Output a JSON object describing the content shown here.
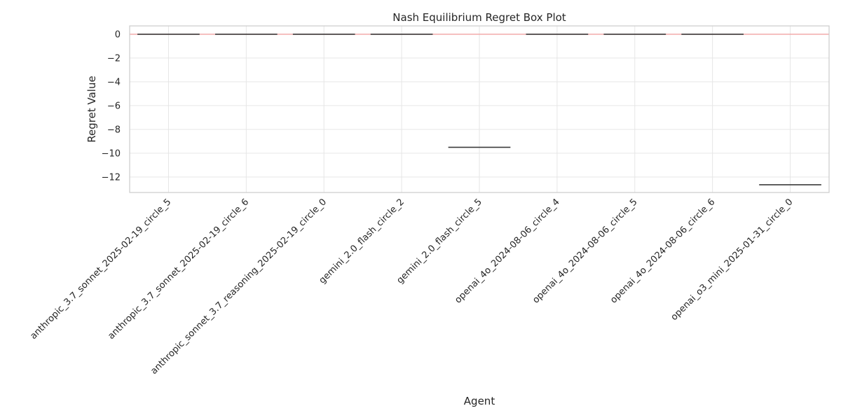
{
  "chart_data": {
    "type": "box",
    "title": "Nash Equilibrium Regret Box Plot",
    "xlabel": "Agent",
    "ylabel": "Regret Value",
    "ylim": [
      -13.3,
      0.7
    ],
    "yticks": [
      0,
      -2,
      -4,
      -6,
      -8,
      -10,
      -12
    ],
    "grid": true,
    "reference_line": {
      "y": 0,
      "color": "#f2a3a3"
    },
    "categories": [
      "anthropic_3.7_sonnet_2025-02-19_circle_5",
      "anthropic_3.7_sonnet_2025-02-19_circle_6",
      "anthropic_sonnet_3.7_reasoning_2025-02-19_circle_0",
      "gemini_2.0_flash_circle_2",
      "gemini_2.0_flash_circle_5",
      "openai_4o_2024-08-06_circle_4",
      "openai_4o_2024-08-06_circle_5",
      "openai_4o_2024-08-06_circle_6",
      "openai_o3_mini_2025-01-31_circle_0"
    ],
    "values": [
      0,
      0,
      0,
      0,
      -9.5,
      0,
      0,
      0,
      -12.65
    ]
  }
}
